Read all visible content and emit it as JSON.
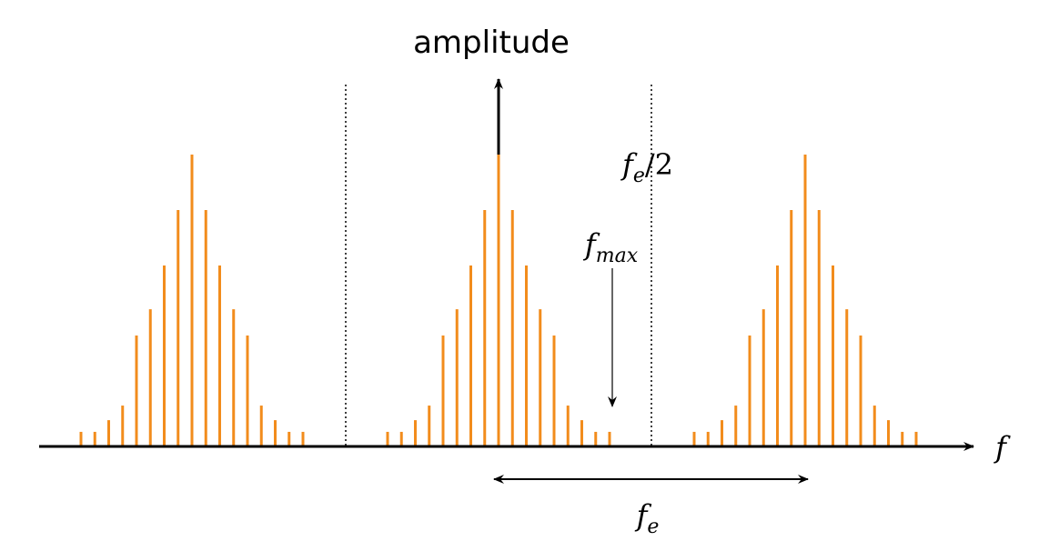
{
  "y_axis_label": "amplitude",
  "x_axis_label": "f",
  "half_sampling_label": {
    "base": "f",
    "sub": "e",
    "rest": "/2"
  },
  "max_freq_label": {
    "base": "f",
    "sub": "max"
  },
  "sampling_label": {
    "base": "f",
    "sub": "e"
  },
  "spectrum": {
    "color": "#f28c1c",
    "amplitudes": [
      0.05,
      0.05,
      0.09,
      0.14,
      0.38,
      0.47,
      0.62,
      0.81,
      1,
      0.81,
      0.62,
      0.47,
      0.38,
      0.14,
      0.09,
      0.05,
      0.05
    ]
  }
}
